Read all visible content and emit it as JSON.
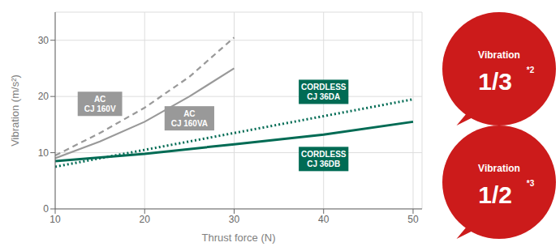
{
  "chart_data": {
    "type": "line",
    "x_label": "Thrust force (N)",
    "y_label": "Vibration (m/s²)",
    "xlim": [
      10,
      51
    ],
    "ylim": [
      0,
      35
    ],
    "xticks": [
      10,
      20,
      30,
      40,
      50
    ],
    "yticks": [
      0,
      10,
      20,
      30
    ],
    "grid": true,
    "series": [
      {
        "name": "AC\nCJ 160V",
        "color": "#999999",
        "line_style": "dashed",
        "x": [
          10,
          15,
          20,
          25,
          30
        ],
        "values": [
          9.5,
          13.5,
          18.0,
          23.5,
          30.5
        ]
      },
      {
        "name": "AC\nCJ 160VA",
        "color": "#999999",
        "line_style": "solid",
        "x": [
          10,
          15,
          20,
          25,
          30
        ],
        "values": [
          9.0,
          12.0,
          15.5,
          20.0,
          25.0
        ]
      },
      {
        "name": "CORDLESS\nCJ 36DA",
        "color": "#006B54",
        "line_style": "dotted",
        "x": [
          10,
          20,
          30,
          40,
          50
        ],
        "values": [
          7.5,
          10.5,
          13.5,
          16.5,
          19.5
        ]
      },
      {
        "name": "CORDLESS\nCJ 36DB",
        "color": "#006B54",
        "line_style": "solid",
        "x": [
          10,
          20,
          30,
          40,
          50
        ],
        "values": [
          8.5,
          9.8,
          11.5,
          13.2,
          15.5
        ]
      }
    ],
    "annotations": [
      {
        "title": "Vibration",
        "text": "1/3",
        "superscript": "*2",
        "color": "#CC1B1B"
      },
      {
        "title": "Vibration",
        "text": "1/2",
        "superscript": "*3",
        "color": "#CC1B1B"
      }
    ]
  }
}
